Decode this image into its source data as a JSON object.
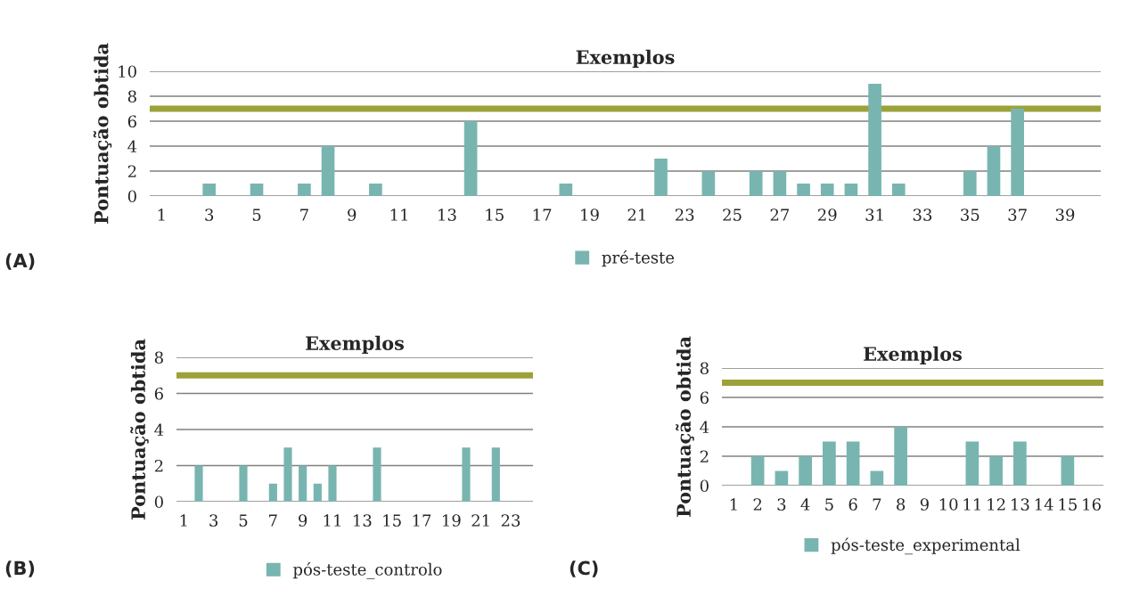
{
  "chart_data": [
    {
      "type": "bar",
      "title": "Exemplos",
      "ylabel": "Pontuação obtida",
      "categories": [
        "1",
        null,
        "3",
        null,
        "5",
        null,
        "7",
        null,
        "9",
        null,
        "11",
        null,
        "13",
        null,
        "15",
        null,
        "17",
        null,
        "19",
        null,
        "21",
        null,
        "23",
        null,
        "25",
        null,
        "27",
        null,
        "29",
        null,
        "31",
        null,
        "33",
        null,
        "35",
        null,
        "37",
        null,
        "39",
        null
      ],
      "series": [
        {
          "name": "pré-teste",
          "color": "#79b5b0",
          "values": [
            0,
            0,
            1,
            0,
            1,
            0,
            1,
            4,
            0,
            1,
            0,
            0,
            0,
            6,
            0,
            0,
            0,
            1,
            0,
            0,
            0,
            3,
            0,
            2,
            0,
            2,
            2,
            1,
            1,
            1,
            9,
            1,
            0,
            0,
            2,
            4,
            7,
            0,
            0,
            0
          ]
        }
      ],
      "ylim": [
        0,
        10
      ],
      "yticks": [
        0,
        2,
        4,
        6,
        8,
        10
      ],
      "grid": "y",
      "legend": "bottom",
      "ref_lines": [
        {
          "axis": "y",
          "value": 7,
          "color": "#9ca23a"
        }
      ],
      "annotations": [
        "(A)"
      ]
    },
    {
      "type": "bar",
      "title": "Exemplos",
      "ylabel": "Pontuação obtida",
      "categories": [
        "1",
        null,
        "3",
        null,
        "5",
        null,
        "7",
        null,
        "9",
        null,
        "11",
        null,
        "13",
        null,
        "15",
        null,
        "17",
        null,
        "19",
        null,
        "21",
        null,
        "23",
        null
      ],
      "series": [
        {
          "name": "pós-teste_controlo",
          "color": "#79b5b0",
          "values": [
            0,
            2,
            0,
            0,
            2,
            0,
            1,
            3,
            2,
            1,
            2,
            0,
            0,
            3,
            0,
            0,
            0,
            0,
            0,
            3,
            0,
            3,
            0,
            0
          ]
        }
      ],
      "ylim": [
        0,
        8
      ],
      "yticks": [
        0,
        2,
        4,
        6,
        8
      ],
      "grid": "y",
      "legend": "bottom",
      "ref_lines": [
        {
          "axis": "y",
          "value": 7,
          "color": "#9ca23a"
        }
      ],
      "annotations": [
        "(B)"
      ]
    },
    {
      "type": "bar",
      "title": "Exemplos",
      "ylabel": "Pontuação obtida",
      "categories": [
        "1",
        "2",
        "3",
        "4",
        "5",
        "6",
        "7",
        "8",
        "9",
        "10",
        "11",
        "12",
        "13",
        "14",
        "15",
        "16"
      ],
      "series": [
        {
          "name": "pós-teste_experimental",
          "color": "#79b5b0",
          "values": [
            0,
            2,
            1,
            2,
            3,
            3,
            1,
            4,
            0,
            0,
            3,
            2,
            3,
            0,
            2,
            0
          ]
        }
      ],
      "ylim": [
        0,
        8
      ],
      "yticks": [
        0,
        2,
        4,
        6,
        8
      ],
      "grid": "y",
      "legend": "bottom",
      "ref_lines": [
        {
          "axis": "y",
          "value": 7,
          "color": "#9ca23a"
        }
      ],
      "annotations": [
        "(C)"
      ]
    }
  ]
}
